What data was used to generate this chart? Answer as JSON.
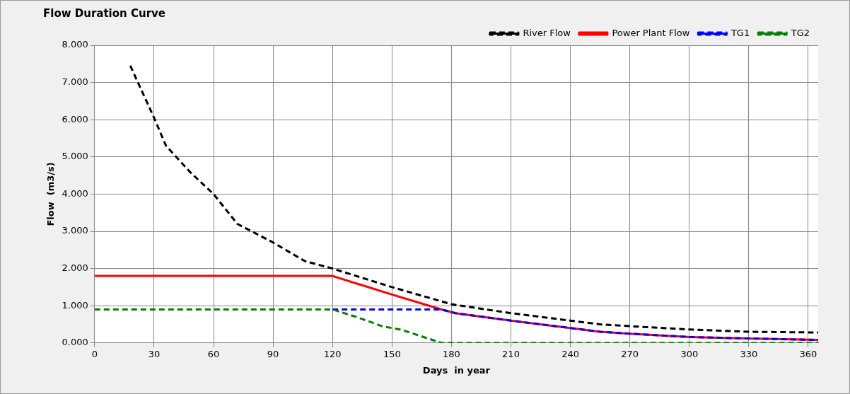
{
  "chart_data": {
    "type": "line",
    "title": "Flow Duration Curve",
    "xlabel": "Days  in year",
    "ylabel": "Flow  (m3/s)",
    "xlim": [
      0,
      365
    ],
    "xticks": [
      0,
      30,
      60,
      90,
      120,
      150,
      180,
      210,
      240,
      270,
      300,
      330,
      360
    ],
    "ylim": [
      0,
      8
    ],
    "yticks": [
      {
        "value": 0,
        "label": "0.000"
      },
      {
        "value": 1,
        "label": "1.000"
      },
      {
        "value": 2,
        "label": "2.000"
      },
      {
        "value": 3,
        "label": "3.000"
      },
      {
        "value": 4,
        "label": "4.000"
      },
      {
        "value": 5,
        "label": "5.000"
      },
      {
        "value": 6,
        "label": "6.000"
      },
      {
        "value": 7,
        "label": "7.000"
      },
      {
        "value": 8,
        "label": "8.000"
      }
    ],
    "grid": true,
    "legend": "top right",
    "marker": "none",
    "series": [
      {
        "name": "River Flow",
        "color": "#000000",
        "line_style": "dashed",
        "x": [
          18,
          30,
          36,
          48,
          60,
          72,
          90,
          106,
          120,
          150,
          180,
          210,
          240,
          255,
          270,
          300,
          330,
          365
        ],
        "values": [
          7.45,
          6.05,
          5.3,
          4.6,
          4.0,
          3.2,
          2.7,
          2.2,
          2.0,
          1.5,
          1.04,
          0.8,
          0.6,
          0.5,
          0.45,
          0.36,
          0.3,
          0.28
        ]
      },
      {
        "name": "Power Plant Flow",
        "color": "#ff0000",
        "line_style": "solid",
        "x": [
          0,
          120,
          150,
          175,
          182,
          210,
          240,
          255,
          270,
          300,
          330,
          365
        ],
        "values": [
          1.8,
          1.8,
          1.3,
          0.9,
          0.8,
          0.6,
          0.4,
          0.3,
          0.25,
          0.16,
          0.12,
          0.08
        ]
      },
      {
        "name": "TG1",
        "color": "#0000ff",
        "line_style": "dashed",
        "x": [
          120,
          175,
          182,
          210,
          240,
          255,
          270,
          300,
          330,
          365
        ],
        "values": [
          0.9,
          0.9,
          0.8,
          0.6,
          0.4,
          0.3,
          0.25,
          0.16,
          0.12,
          0.08
        ]
      },
      {
        "name": "TG2",
        "color": "#008000",
        "line_style": "dashed",
        "x": [
          0,
          120,
          132,
          145,
          155,
          175,
          365
        ],
        "values": [
          0.9,
          0.9,
          0.7,
          0.45,
          0.35,
          0,
          0
        ]
      }
    ]
  }
}
